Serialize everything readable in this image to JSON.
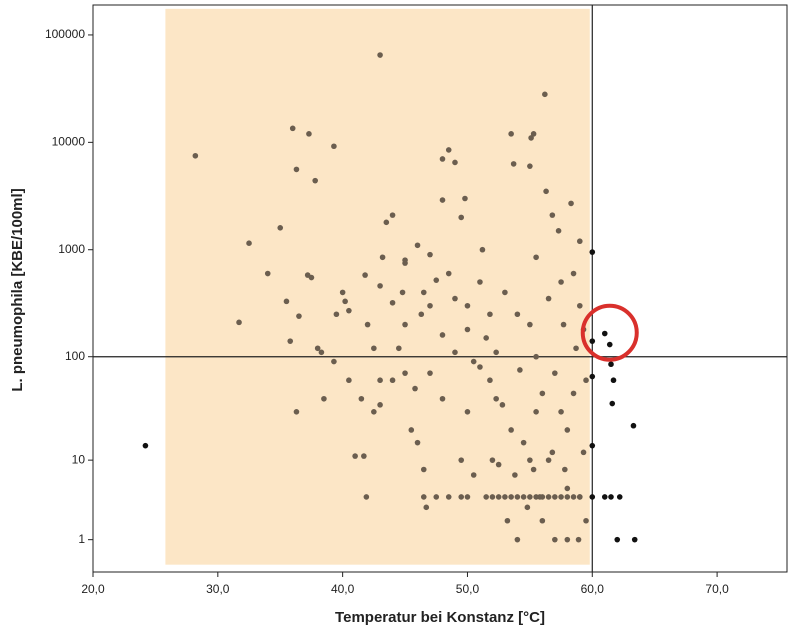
{
  "chart_data": {
    "type": "scatter",
    "xlabel": "Temperatur bei Konstanz [°C]",
    "ylabel": "L. pneumophila [KBE/100ml]",
    "xlim": [
      20,
      75.6
    ],
    "ylim": [
      0,
      190000
    ],
    "yscale": "log1p",
    "xticks": [
      {
        "value": 20,
        "label": "20,0"
      },
      {
        "value": 30,
        "label": "30,0"
      },
      {
        "value": 40,
        "label": "40,0"
      },
      {
        "value": 50,
        "label": "50,0"
      },
      {
        "value": 60,
        "label": "60,0"
      },
      {
        "value": 70,
        "label": "70,0"
      }
    ],
    "yticks": [
      1,
      10,
      100,
      1000,
      10000,
      100000
    ],
    "grid": false,
    "shaded_region": {
      "x": [
        25.8,
        59.8
      ],
      "y": [
        0.17,
        175000
      ],
      "color": "#fce6c6"
    },
    "ref_lines": {
      "x": 60,
      "y": 100
    },
    "highlight_circle": {
      "x": 61.4,
      "y": 168,
      "color": "#d9302c"
    },
    "series": [
      {
        "color": "#6b5e4f",
        "x": [
          28.2,
          32.5,
          31.7,
          34,
          35,
          35.5,
          36,
          36.3,
          37.3,
          37.8,
          39.3,
          43,
          36.5,
          37.2,
          37.5,
          38,
          38.5,
          36.3,
          35.8,
          38.3,
          39.3,
          40,
          40.5,
          41,
          41.7,
          41.8,
          41.9,
          42,
          42.5,
          43,
          43,
          43.2,
          43.5,
          43,
          44,
          44.5,
          44.8,
          45,
          45,
          45.5,
          45.8,
          46,
          46.3,
          46.5,
          46.7,
          47,
          47,
          47,
          47.5,
          48,
          48,
          48,
          48,
          48.5,
          48.5,
          49,
          49,
          49,
          49.5,
          49.5,
          49.8,
          50,
          50,
          50,
          50.5,
          51,
          51,
          51.2,
          51.8,
          51.8,
          52,
          52,
          52.3,
          52.3,
          52.8,
          53,
          53.2,
          53.5,
          53.5,
          53.7,
          54,
          54.2,
          54.5,
          54.8,
          55,
          55,
          55,
          55,
          55.1,
          55.3,
          55.5,
          55.5,
          55.8,
          56,
          56,
          56.2,
          56.3,
          56.5,
          56.8,
          57,
          57,
          57,
          57.3,
          57.5,
          57.7,
          58,
          58,
          58,
          58.3,
          58.5,
          58.5,
          58.7,
          59,
          59,
          59.3,
          59.5,
          59,
          58.9,
          53.5,
          54,
          54.5,
          55.5,
          56,
          56.5,
          57.5,
          58,
          59,
          47.5,
          48.5,
          49.5,
          51.5,
          52.5,
          46,
          46.5,
          45,
          44,
          42.5,
          41.5,
          40.5,
          39.5,
          40.2,
          44,
          45,
          46.5,
          50.5,
          51.5,
          53,
          54,
          55.5,
          56.5,
          57.5,
          58.5,
          59.3,
          50,
          52.5,
          53.8,
          55.3,
          56.8,
          57.8,
          59.5
        ],
        "values": [
          7500,
          1150,
          210,
          600,
          1600,
          330,
          13500,
          5600,
          12000,
          4400,
          9200,
          65000,
          240,
          580,
          550,
          120,
          40,
          30,
          140,
          110,
          90,
          400,
          270,
          11,
          11,
          580,
          4,
          200,
          120,
          60,
          35,
          850,
          1800,
          460,
          320,
          120,
          400,
          70,
          750,
          20,
          50,
          1100,
          250,
          4,
          3,
          300,
          900,
          70,
          520,
          7000,
          2900,
          160,
          40,
          8500,
          600,
          350,
          6500,
          110,
          2000,
          10,
          3000,
          180,
          30,
          4,
          7,
          500,
          80,
          1000,
          250,
          60,
          10,
          4,
          40,
          110,
          35,
          4,
          2,
          12000,
          20,
          6300,
          1,
          75,
          15,
          3,
          6000,
          4,
          10,
          200,
          11000,
          12000,
          850,
          30,
          4,
          45,
          2,
          28000,
          3500,
          10,
          2100,
          70,
          4,
          1,
          1500,
          500,
          200,
          20,
          5,
          1,
          2700,
          600,
          4,
          120,
          1200,
          300,
          12,
          60,
          4,
          1,
          4,
          4,
          4,
          4,
          4,
          4,
          4,
          4,
          4,
          4,
          4,
          4,
          4,
          4,
          15,
          8,
          200,
          60,
          30,
          40,
          60,
          250,
          330,
          2100,
          800,
          400,
          90,
          150,
          400,
          250,
          100,
          350,
          30,
          45,
          180,
          300,
          9,
          7,
          8,
          12,
          8,
          2
        ]
      },
      {
        "color": "#111111",
        "x": [
          24.2,
          60,
          60,
          61,
          61.4,
          61.5,
          61.7,
          61.6,
          60,
          60,
          60,
          61,
          61.5,
          62.2,
          63.3,
          62,
          63.4
        ],
        "values": [
          14,
          950,
          140,
          165,
          130,
          85,
          60,
          36,
          65,
          14,
          4,
          4,
          4,
          4,
          22,
          1,
          1
        ]
      }
    ]
  }
}
